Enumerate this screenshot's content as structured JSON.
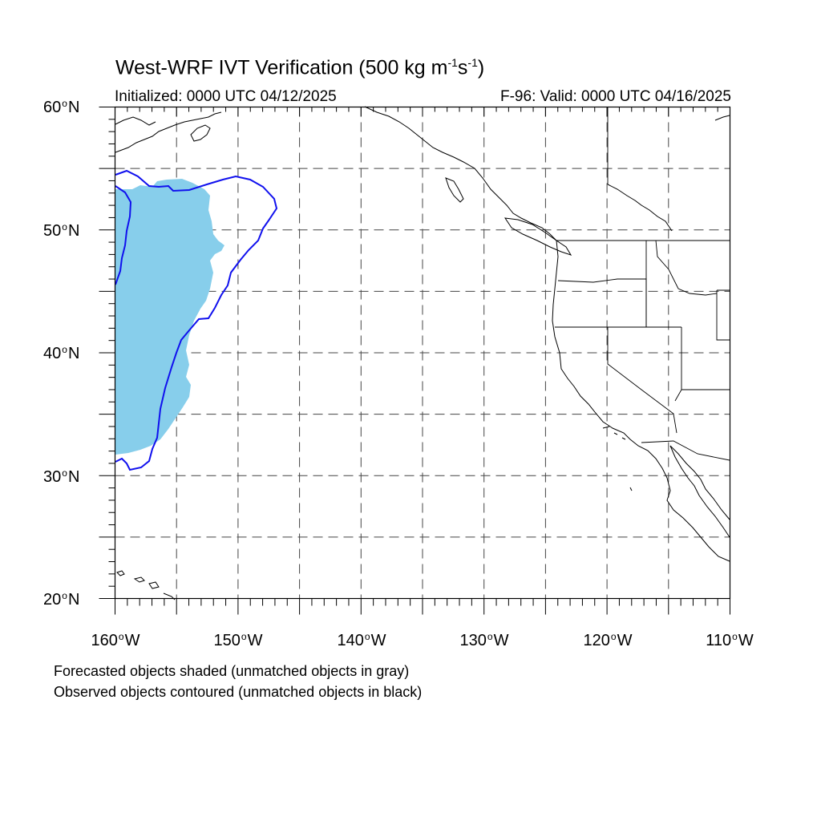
{
  "title": {
    "main": "West-WRF IVT Verification (500 kg m",
    "exp1": "-1",
    "mid": "s",
    "exp2": "-1",
    "end": ")"
  },
  "subtitle_left": "Initialized: 0000 UTC 04/12/2025",
  "subtitle_right": "F-96: Valid: 0000 UTC 04/16/2025",
  "lat_labels": [
    {
      "num": "60",
      "hemi": "N"
    },
    {
      "num": "50",
      "hemi": "N"
    },
    {
      "num": "40",
      "hemi": "N"
    },
    {
      "num": "30",
      "hemi": "N"
    },
    {
      "num": "20",
      "hemi": "N"
    }
  ],
  "lon_labels": [
    {
      "num": "160",
      "hemi": "W"
    },
    {
      "num": "150",
      "hemi": "W"
    },
    {
      "num": "140",
      "hemi": "W"
    },
    {
      "num": "130",
      "hemi": "W"
    },
    {
      "num": "120",
      "hemi": "W"
    },
    {
      "num": "110",
      "hemi": "W"
    }
  ],
  "legend_note_1": "Forecasted objects shaded (unmatched objects in gray)",
  "legend_note_2": "Observed objects contoured (unmatched objects in black)",
  "colors": {
    "forecast_fill": "#87ceeb",
    "observed_contour": "#1010ee",
    "grid": "#444444",
    "coast": "#000000"
  },
  "map": {
    "lon_range": [
      -160,
      -110
    ],
    "lat_range": [
      20,
      60
    ],
    "grid_interval_deg": 5
  }
}
